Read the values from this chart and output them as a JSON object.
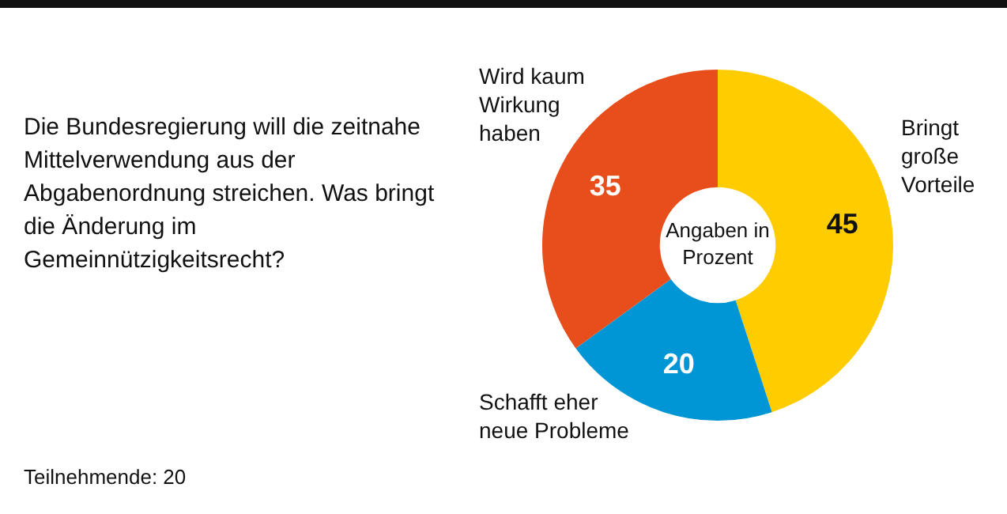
{
  "chart_data": {
    "type": "donut",
    "title": "Die Bundesregierung will die zeitnahe Mittelverwendung aus der Abgabenordnung streichen. Was bringt die Änderung im Gemeinnützigkeitsrecht?",
    "categories": [
      "Bringt große Vorteile",
      "Schafft eher neue Probleme",
      "Wird kaum Wirkung haben"
    ],
    "values": [
      45,
      20,
      35
    ],
    "colors": [
      "#ffcc00",
      "#0096d6",
      "#e84e1b"
    ],
    "data_labels": true,
    "legend": false,
    "annotations": [
      "Angaben in Prozent",
      "Teilnehmende: 20"
    ]
  }
}
